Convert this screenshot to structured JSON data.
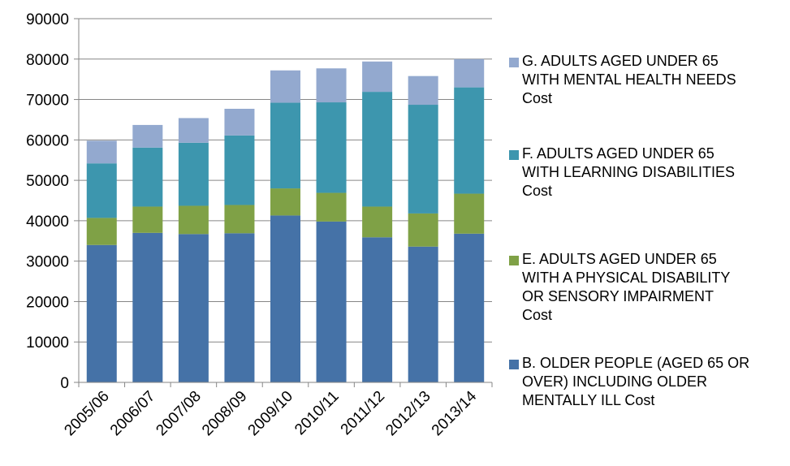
{
  "chart_data": {
    "type": "bar",
    "stacked": true,
    "categories": [
      "2005/06",
      "2006/07",
      "2007/08",
      "2008/09",
      "2009/10",
      "2010/11",
      "2011/12",
      "2012/13",
      "2013/14"
    ],
    "series": [
      {
        "name": "B. OLDER PEOPLE (AGED 65 OR OVER) INCLUDING OLDER MENTALLY ILL Cost",
        "color": "#4572a7",
        "values": [
          34000,
          37000,
          36700,
          36900,
          41300,
          39800,
          35900,
          33600,
          36800
        ]
      },
      {
        "name": "E. ADULTS AGED UNDER 65 WITH A PHYSICAL DISABILITY OR SENSORY IMPAIRMENT Cost",
        "color": "#7fa146",
        "values": [
          6700,
          6500,
          7000,
          7000,
          6700,
          7100,
          7600,
          8200,
          9900
        ]
      },
      {
        "name": "F. ADULTS AGED UNDER 65 WITH LEARNING DISABILITIES Cost",
        "color": "#3d96ae",
        "values": [
          13500,
          14600,
          15600,
          17200,
          21200,
          22400,
          28400,
          26900,
          26300
        ]
      },
      {
        "name": "G. ADULTS AGED UNDER 65 WITH MENTAL HEALTH NEEDS Cost",
        "color": "#93a9cf",
        "values": [
          5600,
          5600,
          6100,
          6600,
          8000,
          8400,
          7500,
          7100,
          7000
        ]
      }
    ],
    "yticks": [
      "0",
      "10000",
      "20000",
      "30000",
      "40000",
      "50000",
      "60000",
      "70000",
      "80000",
      "90000"
    ],
    "ylim": [
      0,
      90000
    ],
    "grid": "horizontal",
    "legend_position": "right"
  },
  "legend": {
    "items": [
      {
        "key": "G",
        "text": "G. ADULTS AGED UNDER 65\nWITH MENTAL HEALTH NEEDS\nCost",
        "color": "#93a9cf"
      },
      {
        "key": "F",
        "text": "F. ADULTS AGED UNDER 65\nWITH LEARNING DISABILITIES\nCost",
        "color": "#3d96ae"
      },
      {
        "key": "E",
        "text": "E. ADULTS AGED UNDER 65\nWITH A PHYSICAL DISABILITY\nOR SENSORY IMPAIRMENT\nCost",
        "color": "#7fa146"
      },
      {
        "key": "B",
        "text": "B. OLDER PEOPLE (AGED 65 OR\nOVER) INCLUDING OLDER\nMENTALLY ILL Cost",
        "color": "#4572a7"
      }
    ]
  }
}
